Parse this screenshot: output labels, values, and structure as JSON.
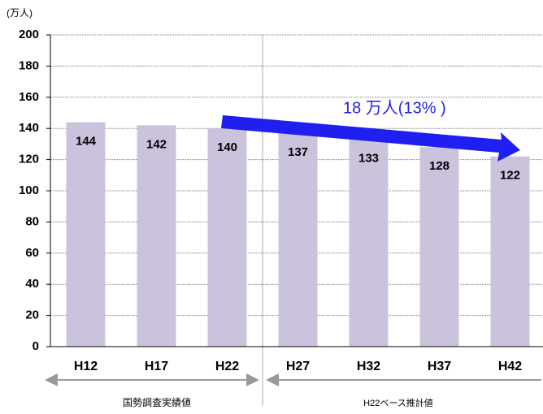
{
  "chart_data": {
    "type": "bar",
    "unit_label": "(万人)",
    "categories": [
      "H12",
      "H17",
      "H22",
      "H27",
      "H32",
      "H37",
      "H42"
    ],
    "values": [
      144,
      142,
      140,
      137,
      133,
      128,
      122
    ],
    "color": "#cbc3dc",
    "ylim": [
      0,
      200
    ],
    "yticks": [
      0,
      20,
      40,
      60,
      80,
      100,
      120,
      140,
      160,
      180,
      200
    ],
    "grid": true,
    "annotation": "18 万人(13% )",
    "groups": [
      "国勢調査実績値",
      "H22ベース推計値"
    ]
  }
}
